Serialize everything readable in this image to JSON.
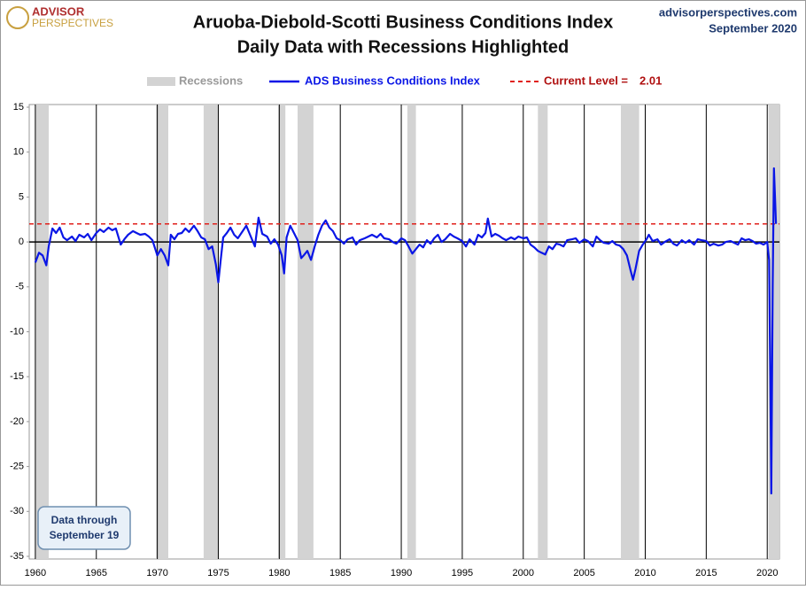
{
  "chart_data": {
    "type": "line",
    "title": "Aruoba-Diebold-Scotti Business Conditions Index",
    "subtitle": "Daily Data with Recessions Highlighted",
    "logo": [
      "ADVISOR",
      "PERSPECTIVES"
    ],
    "source": "advisorperspectives.com",
    "date": "September 2020",
    "annotation": [
      "Data through",
      "September 19"
    ],
    "recessions": {
      "name": "Recessions",
      "color": "#d3d3d3",
      "spans": [
        [
          1960.0,
          1961.1
        ],
        [
          1969.9,
          1970.9
        ],
        [
          1973.8,
          1975.0
        ],
        [
          1979.9,
          1980.5
        ],
        [
          1981.5,
          1982.8
        ],
        [
          1990.5,
          1991.2
        ],
        [
          2001.2,
          2002.0
        ],
        [
          2008.0,
          2009.5
        ],
        [
          2020.1,
          2021.0
        ]
      ]
    },
    "current_level": {
      "label": "Current Level =",
      "value": 2.01,
      "color": "#e0201b"
    },
    "series": [
      {
        "name": "ADS Business Conditions Index",
        "color": "#0a16e6",
        "x": [
          1960.0,
          1960.3,
          1960.6,
          1960.9,
          1961.1,
          1961.4,
          1961.7,
          1962.0,
          1962.3,
          1962.6,
          1963.0,
          1963.3,
          1963.6,
          1964.0,
          1964.3,
          1964.6,
          1965.0,
          1965.3,
          1965.6,
          1966.0,
          1966.3,
          1966.6,
          1967.0,
          1967.3,
          1967.6,
          1968.0,
          1968.3,
          1968.6,
          1969.0,
          1969.3,
          1969.6,
          1970.0,
          1970.3,
          1970.6,
          1970.9,
          1971.1,
          1971.4,
          1971.7,
          1972.0,
          1972.3,
          1972.6,
          1973.0,
          1973.3,
          1973.6,
          1973.9,
          1974.2,
          1974.5,
          1974.8,
          1975.0,
          1975.2,
          1975.4,
          1975.7,
          1976.0,
          1976.3,
          1976.6,
          1977.0,
          1977.3,
          1977.6,
          1978.0,
          1978.3,
          1978.6,
          1979.0,
          1979.3,
          1979.6,
          1979.9,
          1980.2,
          1980.4,
          1980.6,
          1980.9,
          1981.2,
          1981.5,
          1981.8,
          1982.0,
          1982.3,
          1982.6,
          1982.9,
          1983.2,
          1983.5,
          1983.8,
          1984.1,
          1984.4,
          1984.7,
          1985.0,
          1985.3,
          1985.6,
          1986.0,
          1986.3,
          1986.6,
          1987.0,
          1987.3,
          1987.6,
          1988.0,
          1988.3,
          1988.6,
          1989.0,
          1989.3,
          1989.6,
          1990.0,
          1990.3,
          1990.6,
          1990.9,
          1991.2,
          1991.5,
          1991.8,
          1992.1,
          1992.4,
          1992.7,
          1993.0,
          1993.3,
          1993.6,
          1994.0,
          1994.3,
          1994.6,
          1995.0,
          1995.3,
          1995.6,
          1996.0,
          1996.3,
          1996.6,
          1996.9,
          1997.1,
          1997.4,
          1997.7,
          1998.0,
          1998.3,
          1998.6,
          1999.0,
          1999.3,
          1999.6,
          2000.0,
          2000.3,
          2000.6,
          2000.9,
          2001.2,
          2001.5,
          2001.8,
          2002.1,
          2002.4,
          2002.7,
          2003.0,
          2003.3,
          2003.6,
          2004.0,
          2004.3,
          2004.6,
          2005.0,
          2005.3,
          2005.7,
          2006.0,
          2006.3,
          2006.6,
          2007.0,
          2007.3,
          2007.6,
          2007.9,
          2008.2,
          2008.5,
          2008.8,
          2009.0,
          2009.2,
          2009.5,
          2009.8,
          2010.1,
          2010.3,
          2010.6,
          2011.0,
          2011.3,
          2011.6,
          2012.0,
          2012.3,
          2012.6,
          2013.0,
          2013.3,
          2013.6,
          2014.0,
          2014.3,
          2014.6,
          2015.0,
          2015.3,
          2015.6,
          2016.0,
          2016.3,
          2016.6,
          2017.0,
          2017.3,
          2017.6,
          2017.9,
          2018.2,
          2018.5,
          2018.8,
          2019.1,
          2019.4,
          2019.7,
          2020.0,
          2020.15,
          2020.25,
          2020.33,
          2020.45,
          2020.55,
          2020.65,
          2020.72
        ],
        "values": [
          -2.3,
          -1.2,
          -1.5,
          -2.6,
          -0.5,
          1.5,
          1.0,
          1.6,
          0.5,
          0.2,
          0.6,
          0.1,
          0.8,
          0.5,
          0.9,
          0.2,
          1.0,
          1.4,
          1.1,
          1.6,
          1.3,
          1.5,
          -0.3,
          0.3,
          0.8,
          1.2,
          1.0,
          0.8,
          0.9,
          0.6,
          0.2,
          -1.5,
          -0.8,
          -1.5,
          -2.6,
          0.8,
          0.3,
          0.9,
          1.0,
          1.5,
          1.1,
          1.8,
          1.2,
          0.5,
          0.3,
          -0.8,
          -0.5,
          -2.5,
          -4.5,
          -2.0,
          0.5,
          1.0,
          1.6,
          0.8,
          0.4,
          1.2,
          1.8,
          0.8,
          -0.5,
          2.7,
          0.9,
          0.6,
          -0.2,
          0.3,
          -0.3,
          -1.5,
          -3.5,
          0.5,
          1.8,
          1.0,
          0.2,
          -1.8,
          -1.5,
          -1.0,
          -2.0,
          -0.5,
          0.8,
          1.8,
          2.4,
          1.6,
          1.2,
          0.4,
          0.2,
          -0.2,
          0.3,
          0.5,
          -0.3,
          0.2,
          0.4,
          0.6,
          0.8,
          0.5,
          0.9,
          0.4,
          0.3,
          0,
          -0.2,
          0.4,
          0.2,
          -0.5,
          -1.3,
          -0.8,
          -0.3,
          -0.6,
          0.2,
          -0.2,
          0.4,
          0.8,
          0,
          0.3,
          0.9,
          0.6,
          0.4,
          0.1,
          -0.5,
          0.3,
          -0.3,
          0.8,
          0.5,
          1.0,
          2.6,
          0.6,
          0.9,
          0.7,
          0.4,
          0.2,
          0.5,
          0.3,
          0.6,
          0.4,
          0.5,
          -0.3,
          -0.6,
          -1.0,
          -1.2,
          -1.4,
          -0.5,
          -0.8,
          -0.2,
          -0.3,
          -0.5,
          0.2,
          0.3,
          0.4,
          -0.1,
          0.3,
          0.1,
          -0.5,
          0.6,
          0.2,
          -0.1,
          -0.2,
          0.1,
          -0.3,
          -0.4,
          -0.8,
          -1.5,
          -3.2,
          -4.2,
          -3.0,
          -1.0,
          -0.3,
          0.3,
          0.8,
          0.1,
          0.3,
          -0.3,
          0,
          0.3,
          -0.2,
          -0.4,
          0.2,
          -0.1,
          0.2,
          -0.3,
          0.3,
          0.2,
          0.1,
          -0.4,
          -0.2,
          -0.4,
          -0.3,
          0,
          0.1,
          -0.1,
          -0.3,
          0.4,
          0.2,
          0.3,
          0.1,
          -0.2,
          -0.1,
          -0.3,
          0,
          -2.0,
          -15,
          -28,
          -5,
          8.2,
          4.5,
          2.01
        ]
      }
    ],
    "xlim": [
      1959.5,
      2021
    ],
    "xticks": [
      1960,
      1965,
      1970,
      1975,
      1980,
      1985,
      1990,
      1995,
      2000,
      2005,
      2010,
      2015,
      2020
    ],
    "ylim": [
      -35,
      15
    ],
    "yticks": [
      15,
      10,
      5,
      0,
      -5,
      -10,
      -15,
      -20,
      -25,
      -30,
      -35
    ]
  }
}
